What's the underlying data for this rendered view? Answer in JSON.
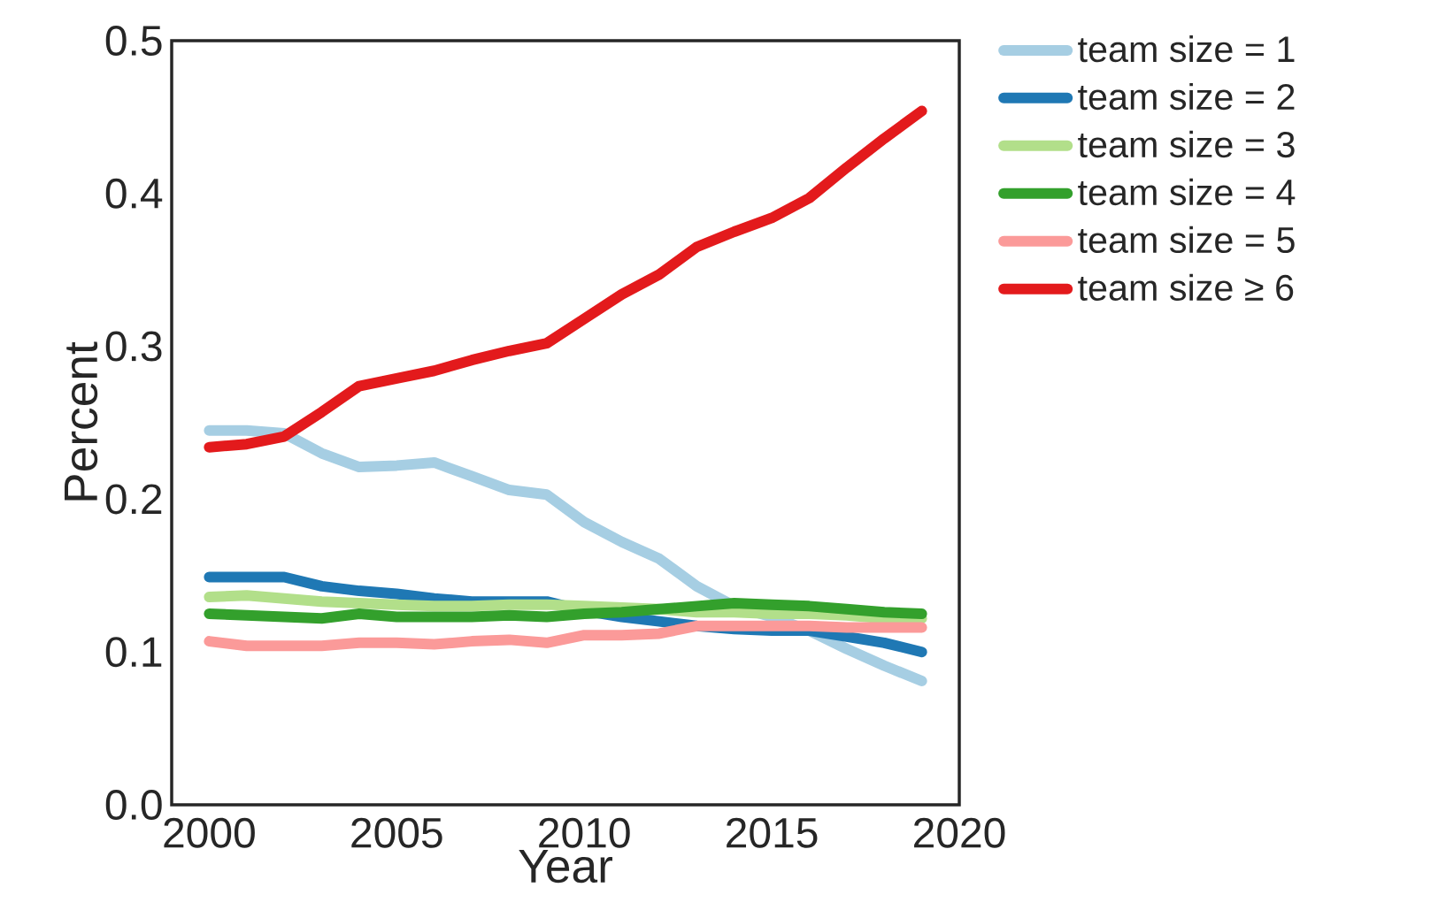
{
  "chart_data": {
    "type": "line",
    "xlabel": "Year",
    "ylabel": "Percent",
    "x": [
      2000,
      2001,
      2002,
      2003,
      2004,
      2005,
      2006,
      2007,
      2008,
      2009,
      2010,
      2011,
      2012,
      2013,
      2014,
      2015,
      2016,
      2017,
      2018,
      2019
    ],
    "series": [
      {
        "name": "team size = 1",
        "color": "#a6cee3",
        "values": [
          0.245,
          0.245,
          0.243,
          0.23,
          0.221,
          0.222,
          0.224,
          0.215,
          0.206,
          0.203,
          0.185,
          0.172,
          0.161,
          0.143,
          0.13,
          0.123,
          0.114,
          0.102,
          0.091,
          0.081
        ]
      },
      {
        "name": "team size = 2",
        "color": "#1f78b4",
        "values": [
          0.149,
          0.149,
          0.149,
          0.143,
          0.14,
          0.138,
          0.135,
          0.133,
          0.133,
          0.133,
          0.127,
          0.123,
          0.12,
          0.117,
          0.115,
          0.114,
          0.114,
          0.11,
          0.106,
          0.1
        ]
      },
      {
        "name": "team size = 3",
        "color": "#b2df8a",
        "values": [
          0.136,
          0.137,
          0.135,
          0.133,
          0.132,
          0.131,
          0.13,
          0.13,
          0.131,
          0.131,
          0.13,
          0.129,
          0.128,
          0.126,
          0.126,
          0.125,
          0.125,
          0.124,
          0.122,
          0.122
        ]
      },
      {
        "name": "team size = 4",
        "color": "#33a02c",
        "values": [
          0.125,
          0.124,
          0.123,
          0.122,
          0.125,
          0.123,
          0.123,
          0.123,
          0.124,
          0.123,
          0.125,
          0.126,
          0.128,
          0.13,
          0.132,
          0.131,
          0.13,
          0.128,
          0.126,
          0.125
        ]
      },
      {
        "name": "team size = 5",
        "color": "#fb9a99",
        "values": [
          0.107,
          0.104,
          0.104,
          0.104,
          0.106,
          0.106,
          0.105,
          0.107,
          0.108,
          0.106,
          0.111,
          0.111,
          0.112,
          0.117,
          0.117,
          0.117,
          0.117,
          0.116,
          0.116,
          0.116
        ]
      },
      {
        "name": "team size ≥ 6",
        "color": "#e31a1c",
        "values": [
          0.234,
          0.236,
          0.241,
          0.257,
          0.274,
          0.279,
          0.284,
          0.291,
          0.297,
          0.302,
          0.318,
          0.334,
          0.347,
          0.365,
          0.375,
          0.384,
          0.397,
          0.417,
          0.436,
          0.454
        ]
      }
    ],
    "xlim": [
      1999,
      2020
    ],
    "xticks": [
      2000,
      2005,
      2010,
      2015,
      2020
    ],
    "ylim": [
      0,
      0.5
    ],
    "yticks": [
      {
        "value": 0,
        "label": "0.0"
      },
      {
        "value": 0.1,
        "label": "0.1"
      },
      {
        "value": 0.2,
        "label": "0.2"
      },
      {
        "value": 0.3,
        "label": "0.3"
      },
      {
        "value": 0.4,
        "label": "0.4"
      },
      {
        "value": 0.5,
        "label": "0.5"
      }
    ],
    "grid": false,
    "legend": "right",
    "marker": "none",
    "line_style": "solid"
  }
}
